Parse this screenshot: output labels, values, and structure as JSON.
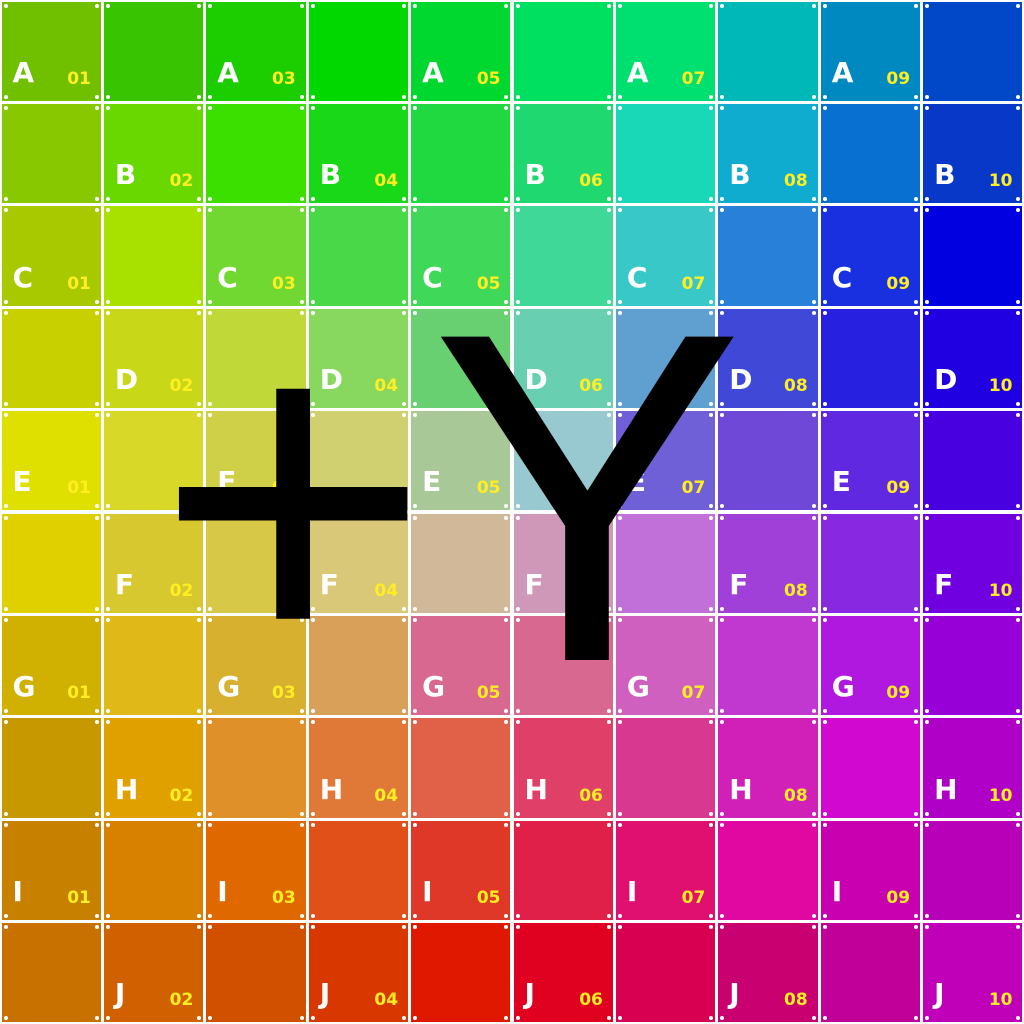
{
  "overlay_text": "+Y",
  "rows": [
    "A",
    "B",
    "C",
    "D",
    "E",
    "F",
    "G",
    "H",
    "I",
    "J"
  ],
  "cols": [
    "01",
    "02",
    "03",
    "04",
    "05",
    "06",
    "07",
    "08",
    "09",
    "10"
  ],
  "colors": [
    [
      "#70c000",
      "#38c400",
      "#1ccd00",
      "#00d800",
      "#00d830",
      "#00e060",
      "#00e070",
      "#00b8b8",
      "#0088c0",
      "#0048c8"
    ],
    [
      "#88c800",
      "#68d800",
      "#3ce000",
      "#18d818",
      "#20d840",
      "#20d870",
      "#18d8b8",
      "#10acd0",
      "#0870d0",
      "#0838c8"
    ],
    [
      "#a8c800",
      "#a8e000",
      "#70d830",
      "#48d848",
      "#40d858",
      "#40d898",
      "#38c8c8",
      "#2880d8",
      "#1830e0",
      "#0000e0"
    ],
    [
      "#c8d000",
      "#c8d818",
      "#c0d838",
      "#88d860",
      "#68d070",
      "#68d0b0",
      "#60a0d0",
      "#4048d8",
      "#2820e0",
      "#2000e0"
    ],
    [
      "#e0e000",
      "#d8d828",
      "#d0d048",
      "#d0d070",
      "#a8c898",
      "#98c8d0",
      "#7060d8",
      "#7048d8",
      "#6028e0",
      "#4800e0"
    ],
    [
      "#e0d000",
      "#d8c830",
      "#d8c848",
      "#d8c878",
      "#d0b898",
      "#d098b8",
      "#c070d8",
      "#a040d8",
      "#8828e0",
      "#7000e0"
    ],
    [
      "#d0b000",
      "#e0b818",
      "#d8b030",
      "#d8a058",
      "#d86890",
      "#d86890",
      "#d060c0",
      "#c038d0",
      "#b018e0",
      "#9800d8"
    ],
    [
      "#c89800",
      "#e0a000",
      "#e09028",
      "#e07838",
      "#e06048",
      "#e04068",
      "#d83890",
      "#d020b8",
      "#d008d0",
      "#b000c8"
    ],
    [
      "#c88000",
      "#d88000",
      "#e06800",
      "#e05018",
      "#e03828",
      "#e02048",
      "#e01070",
      "#e008a0",
      "#c800b0",
      "#b800b8"
    ],
    [
      "#c87000",
      "#d06000",
      "#d05000",
      "#d83800",
      "#e01800",
      "#e00020",
      "#d80050",
      "#c80070",
      "#c00098",
      "#c000b8"
    ]
  ]
}
